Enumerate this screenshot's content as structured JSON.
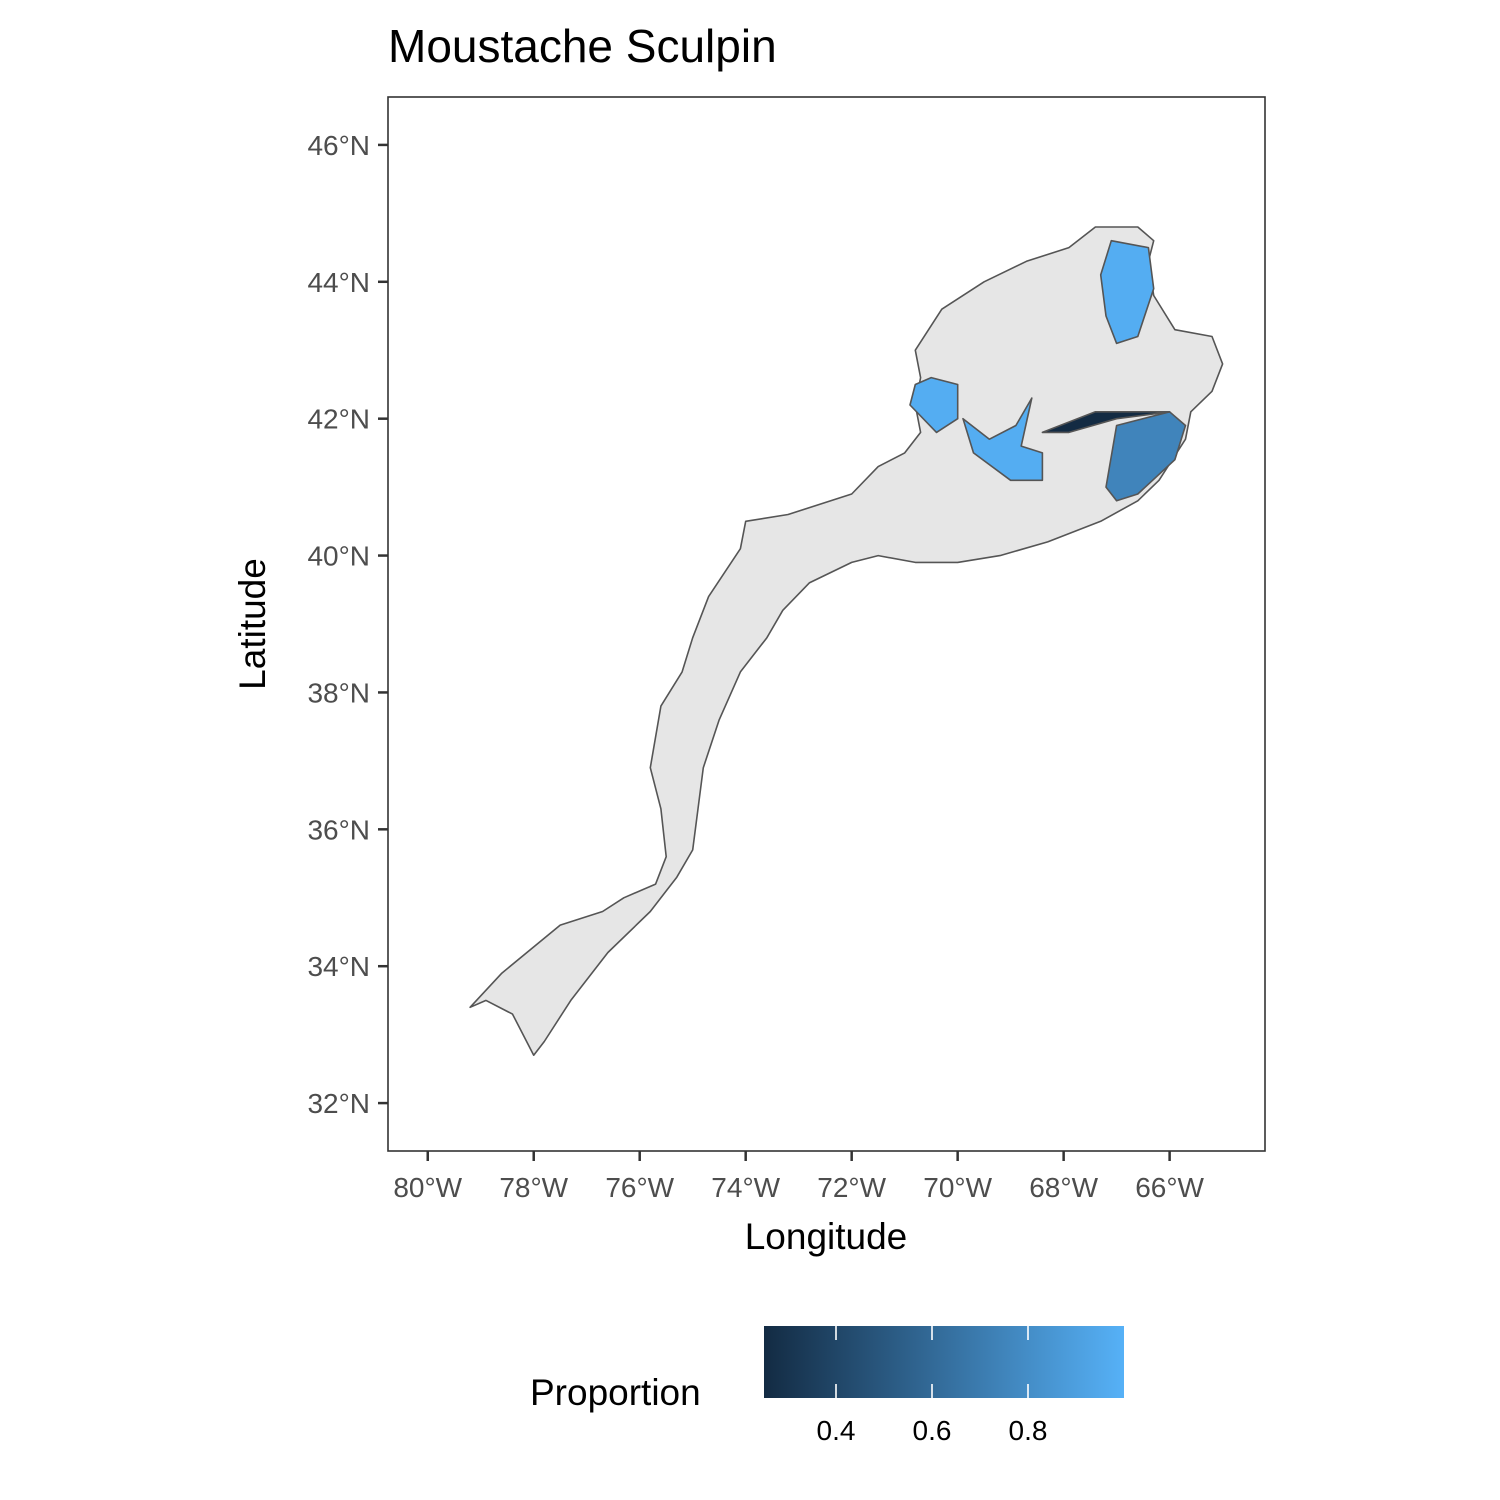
{
  "title": "Moustache Sculpin",
  "axes": {
    "x_title": "Longitude",
    "y_title": "Latitude",
    "x_ticks": [
      {
        "value": -80,
        "label": "80°W"
      },
      {
        "value": -78,
        "label": "78°W"
      },
      {
        "value": -76,
        "label": "76°W"
      },
      {
        "value": -74,
        "label": "74°W"
      },
      {
        "value": -72,
        "label": "72°W"
      },
      {
        "value": -70,
        "label": "70°W"
      },
      {
        "value": -68,
        "label": "68°W"
      },
      {
        "value": -66,
        "label": "66°W"
      }
    ],
    "y_ticks": [
      {
        "value": 32,
        "label": "32°N"
      },
      {
        "value": 34,
        "label": "34°N"
      },
      {
        "value": 36,
        "label": "36°N"
      },
      {
        "value": 38,
        "label": "38°N"
      },
      {
        "value": 40,
        "label": "40°N"
      },
      {
        "value": 42,
        "label": "42°N"
      },
      {
        "value": 44,
        "label": "44°N"
      },
      {
        "value": 46,
        "label": "46°N"
      }
    ],
    "xlim": [
      -80.75,
      -64.2
    ],
    "ylim": [
      31.3,
      46.7
    ]
  },
  "legend": {
    "title": "Proportion",
    "position": "bottom",
    "range": [
      0.25,
      1.0
    ],
    "ticks": [
      {
        "value": 0.4,
        "label": "0.4"
      },
      {
        "value": 0.6,
        "label": "0.6"
      },
      {
        "value": 0.8,
        "label": "0.8"
      }
    ],
    "color_low": "#132B43",
    "color_high": "#56B1F7"
  },
  "colors": {
    "base_fill": "#e6e6e6",
    "outline": "#555555",
    "panel_border": "#333333"
  },
  "chart_data": {
    "type": "choropleth",
    "strata": [
      {
        "name": "",
        "value": 0.98,
        "coords": [
          [
            -67.1,
            44.6
          ],
          [
            -66.4,
            44.5
          ],
          [
            -66.3,
            43.9
          ],
          [
            -66.6,
            43.2
          ],
          [
            -67.0,
            43.1
          ],
          [
            -67.2,
            43.5
          ],
          [
            -67.3,
            44.1
          ]
        ]
      },
      {
        "name": "",
        "value": 0.98,
        "coords": [
          [
            -70.5,
            42.6
          ],
          [
            -70.0,
            42.5
          ],
          [
            -70.0,
            42.0
          ],
          [
            -70.4,
            41.8
          ],
          [
            -70.9,
            42.2
          ],
          [
            -70.8,
            42.5
          ]
        ]
      },
      {
        "name": "",
        "value": 0.98,
        "coords": [
          [
            -69.9,
            42.0
          ],
          [
            -69.4,
            41.7
          ],
          [
            -68.9,
            41.9
          ],
          [
            -68.6,
            42.3
          ],
          [
            -68.8,
            41.6
          ],
          [
            -68.4,
            41.5
          ],
          [
            -68.4,
            41.1
          ],
          [
            -69.0,
            41.1
          ],
          [
            -69.7,
            41.5
          ]
        ]
      },
      {
        "name": "",
        "value": 0.75,
        "coords": [
          [
            -67.0,
            41.9
          ],
          [
            -66.0,
            42.1
          ],
          [
            -65.7,
            41.9
          ],
          [
            -65.9,
            41.4
          ],
          [
            -66.6,
            40.9
          ],
          [
            -67.0,
            40.8
          ],
          [
            -67.2,
            41.0
          ]
        ]
      },
      {
        "name": "",
        "value": 0.25,
        "coords": [
          [
            -68.4,
            41.8
          ],
          [
            -67.4,
            42.1
          ],
          [
            -66.2,
            42.1
          ],
          [
            -66.0,
            42.1
          ],
          [
            -67.0,
            42.0
          ],
          [
            -67.9,
            41.8
          ]
        ]
      }
    ],
    "region_outline": [
      [
        -78.0,
        32.7
      ],
      [
        -78.4,
        33.3
      ],
      [
        -78.9,
        33.5
      ],
      [
        -79.2,
        33.4
      ],
      [
        -78.6,
        33.9
      ],
      [
        -77.5,
        34.6
      ],
      [
        -76.7,
        34.8
      ],
      [
        -76.3,
        35.0
      ],
      [
        -75.7,
        35.2
      ],
      [
        -75.5,
        35.6
      ],
      [
        -75.6,
        36.3
      ],
      [
        -75.8,
        36.9
      ],
      [
        -75.6,
        37.8
      ],
      [
        -75.2,
        38.3
      ],
      [
        -75.0,
        38.8
      ],
      [
        -74.7,
        39.4
      ],
      [
        -74.1,
        40.1
      ],
      [
        -74.0,
        40.5
      ],
      [
        -73.2,
        40.6
      ],
      [
        -72.0,
        40.9
      ],
      [
        -71.5,
        41.3
      ],
      [
        -71.0,
        41.5
      ],
      [
        -70.7,
        41.8
      ],
      [
        -70.8,
        42.2
      ],
      [
        -70.7,
        42.6
      ],
      [
        -70.8,
        43.0
      ],
      [
        -70.3,
        43.6
      ],
      [
        -69.5,
        44.0
      ],
      [
        -68.7,
        44.3
      ],
      [
        -67.9,
        44.5
      ],
      [
        -67.4,
        44.8
      ],
      [
        -66.6,
        44.8
      ],
      [
        -66.3,
        44.6
      ],
      [
        -66.4,
        44.3
      ],
      [
        -66.3,
        43.8
      ],
      [
        -65.9,
        43.3
      ],
      [
        -65.2,
        43.2
      ],
      [
        -65.0,
        42.8
      ],
      [
        -65.2,
        42.4
      ],
      [
        -65.6,
        42.1
      ],
      [
        -65.7,
        41.7
      ],
      [
        -66.2,
        41.1
      ],
      [
        -66.6,
        40.8
      ],
      [
        -67.3,
        40.5
      ],
      [
        -68.3,
        40.2
      ],
      [
        -69.2,
        40.0
      ],
      [
        -70.0,
        39.9
      ],
      [
        -70.8,
        39.9
      ],
      [
        -71.5,
        40.0
      ],
      [
        -72.0,
        39.9
      ],
      [
        -72.8,
        39.6
      ],
      [
        -73.3,
        39.2
      ],
      [
        -73.6,
        38.8
      ],
      [
        -74.1,
        38.3
      ],
      [
        -74.5,
        37.6
      ],
      [
        -74.8,
        36.9
      ],
      [
        -74.9,
        36.3
      ],
      [
        -75.0,
        35.7
      ],
      [
        -75.3,
        35.3
      ],
      [
        -75.8,
        34.8
      ],
      [
        -76.6,
        34.2
      ],
      [
        -77.3,
        33.5
      ],
      [
        -77.8,
        32.9
      ],
      [
        -78.0,
        32.7
      ]
    ]
  }
}
